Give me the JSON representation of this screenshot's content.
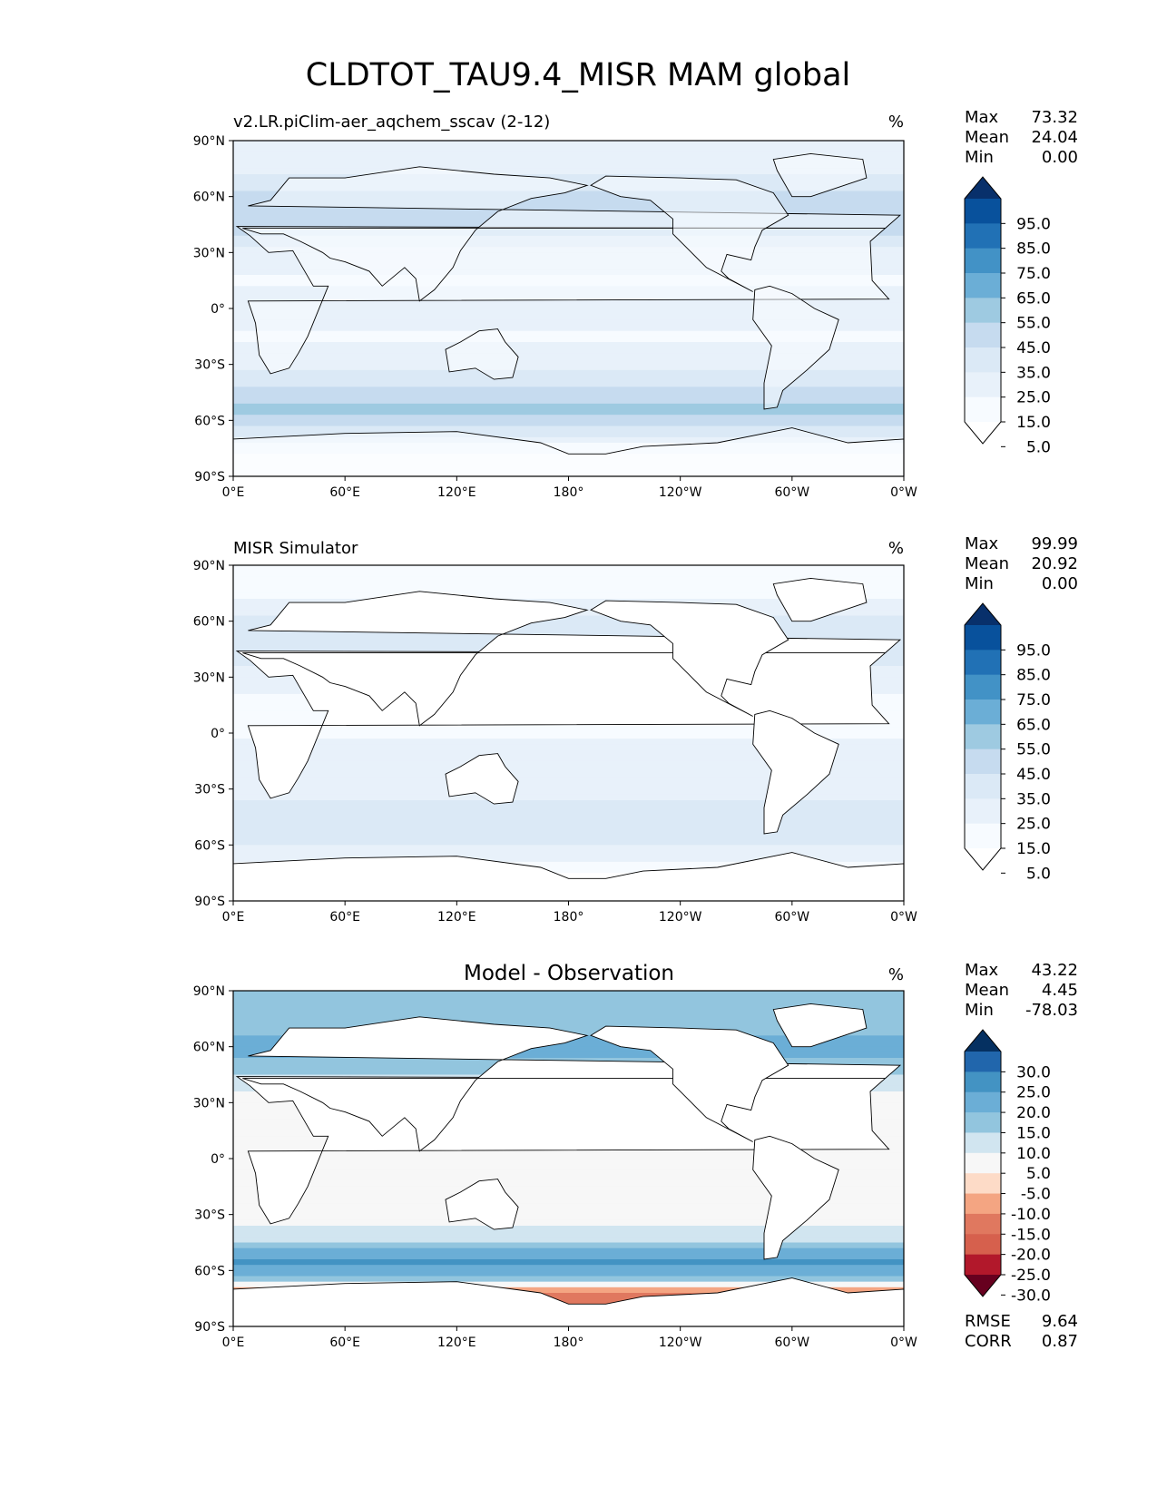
{
  "figure": {
    "title": "CLDTOT_TAU9.4_MISR MAM global"
  },
  "axes": {
    "lat_ticks": [
      "90°N",
      "60°N",
      "30°N",
      "0°",
      "30°S",
      "60°S",
      "90°S"
    ],
    "lon_ticks": [
      "0°E",
      "60°E",
      "120°E",
      "180°",
      "120°W",
      "60°W",
      "0°W"
    ]
  },
  "panels": [
    {
      "title_left": "v2.LR.piClim-aer_aqchem_sscav (2-12)",
      "title_center": "",
      "units": "%",
      "stats": [
        {
          "label": "Max",
          "value": "73.32"
        },
        {
          "label": "Mean",
          "value": "24.04"
        },
        {
          "label": "Min",
          "value": "0.00"
        }
      ],
      "colorbar": {
        "labels": [
          "95.0",
          "85.0",
          "75.0",
          "65.0",
          "55.0",
          "45.0",
          "35.0",
          "25.0",
          "15.0",
          "5.0"
        ],
        "colors_top_to_bottom": [
          "#08306b",
          "#08519c",
          "#2171b5",
          "#4292c6",
          "#6baed6",
          "#9ecae1",
          "#c6dbef",
          "#dbe9f6",
          "#e8f1fa",
          "#f7fbff",
          "#ffffff"
        ]
      },
      "extra_stats": []
    },
    {
      "title_left": "MISR Simulator",
      "title_center": "",
      "units": "%",
      "stats": [
        {
          "label": "Max",
          "value": "99.99"
        },
        {
          "label": "Mean",
          "value": "20.92"
        },
        {
          "label": "Min",
          "value": "0.00"
        }
      ],
      "colorbar": {
        "labels": [
          "95.0",
          "85.0",
          "75.0",
          "65.0",
          "55.0",
          "45.0",
          "35.0",
          "25.0",
          "15.0",
          "5.0"
        ],
        "colors_top_to_bottom": [
          "#08306b",
          "#08519c",
          "#2171b5",
          "#4292c6",
          "#6baed6",
          "#9ecae1",
          "#c6dbef",
          "#dbe9f6",
          "#e8f1fa",
          "#f7fbff",
          "#ffffff"
        ]
      },
      "extra_stats": []
    },
    {
      "title_left": "",
      "title_center": "Model - Observation",
      "units": "%",
      "stats": [
        {
          "label": "Max",
          "value": "43.22"
        },
        {
          "label": "Mean",
          "value": "4.45"
        },
        {
          "label": "Min",
          "value": "-78.03"
        }
      ],
      "colorbar": {
        "labels": [
          "30.0",
          "25.0",
          "20.0",
          "15.0",
          "10.0",
          "5.0",
          "-5.0",
          "-10.0",
          "-15.0",
          "-20.0",
          "-25.0",
          "-30.0"
        ],
        "colors_top_to_bottom": [
          "#053061",
          "#2166ac",
          "#4393c3",
          "#6baed6",
          "#92c5de",
          "#d1e5f0",
          "#f7f7f7",
          "#fddbc7",
          "#f4a582",
          "#e0785f",
          "#d6604d",
          "#b2182b",
          "#67001f"
        ]
      },
      "extra_stats": [
        {
          "label": "RMSE",
          "value": "9.64"
        },
        {
          "label": "CORR",
          "value": "0.87"
        }
      ]
    }
  ],
  "chart_data": [
    {
      "type": "heatmap",
      "title": "v2.LR.piClim-aer_aqchem_sscav (2-12)",
      "units": "%",
      "x_ticks": [
        "0°E",
        "60°E",
        "120°E",
        "180°",
        "120°W",
        "60°W",
        "0°W"
      ],
      "y_ticks": [
        "90°N",
        "60°N",
        "30°N",
        "0°",
        "30°S",
        "60°S",
        "90°S"
      ],
      "xlim": [
        0,
        360
      ],
      "ylim": [
        -90,
        90
      ],
      "color_levels": [
        5,
        15,
        25,
        35,
        45,
        55,
        65,
        75,
        85,
        95
      ],
      "colormap": "Blues",
      "max": 73.32,
      "mean": 24.04,
      "min": 0.0,
      "zonal_band_estimates": [
        {
          "lat": 75,
          "value": 20
        },
        {
          "lat": 60,
          "value": 40
        },
        {
          "lat": 45,
          "value": 42
        },
        {
          "lat": 30,
          "value": 20
        },
        {
          "lat": 15,
          "value": 14
        },
        {
          "lat": 0,
          "value": 18
        },
        {
          "lat": -15,
          "value": 14
        },
        {
          "lat": -30,
          "value": 22
        },
        {
          "lat": -45,
          "value": 40
        },
        {
          "lat": -55,
          "value": 50
        },
        {
          "lat": -65,
          "value": 30
        },
        {
          "lat": -80,
          "value": 3
        }
      ]
    },
    {
      "type": "heatmap",
      "title": "MISR Simulator",
      "units": "%",
      "x_ticks": [
        "0°E",
        "60°E",
        "120°E",
        "180°",
        "120°W",
        "60°W",
        "0°W"
      ],
      "y_ticks": [
        "90°N",
        "60°N",
        "30°N",
        "0°",
        "30°S",
        "60°S",
        "90°S"
      ],
      "xlim": [
        0,
        360
      ],
      "ylim": [
        -90,
        90
      ],
      "color_levels": [
        5,
        15,
        25,
        35,
        45,
        55,
        65,
        75,
        85,
        95
      ],
      "colormap": "Blues",
      "max": 99.99,
      "mean": 20.92,
      "min": 0.0,
      "zonal_band_estimates": [
        {
          "lat": 75,
          "value": 10
        },
        {
          "lat": 60,
          "value": 28
        },
        {
          "lat": 45,
          "value": 35
        },
        {
          "lat": 30,
          "value": 18
        },
        {
          "lat": 15,
          "value": 12
        },
        {
          "lat": 0,
          "value": 14
        },
        {
          "lat": -15,
          "value": 18
        },
        {
          "lat": -30,
          "value": 22
        },
        {
          "lat": -45,
          "value": 30
        },
        {
          "lat": -55,
          "value": 30
        },
        {
          "lat": -65,
          "value": 20
        },
        {
          "lat": -80,
          "value": 0
        }
      ]
    },
    {
      "type": "heatmap",
      "title": "Model - Observation",
      "units": "%",
      "x_ticks": [
        "0°E",
        "60°E",
        "120°E",
        "180°",
        "120°W",
        "60°W",
        "0°W"
      ],
      "y_ticks": [
        "90°N",
        "60°N",
        "30°N",
        "0°",
        "30°S",
        "60°S",
        "90°S"
      ],
      "xlim": [
        0,
        360
      ],
      "ylim": [
        -90,
        90
      ],
      "color_levels": [
        -30,
        -25,
        -20,
        -15,
        -10,
        -5,
        5,
        10,
        15,
        20,
        25,
        30
      ],
      "colormap": "RdBu",
      "max": 43.22,
      "mean": 4.45,
      "min": -78.03,
      "rmse": 9.64,
      "corr": 0.87,
      "zonal_band_estimates": [
        {
          "lat": 75,
          "value": 10
        },
        {
          "lat": 60,
          "value": 18
        },
        {
          "lat": 45,
          "value": 10
        },
        {
          "lat": 30,
          "value": 2
        },
        {
          "lat": 15,
          "value": -2
        },
        {
          "lat": 0,
          "value": 4
        },
        {
          "lat": -15,
          "value": 0
        },
        {
          "lat": -30,
          "value": 0
        },
        {
          "lat": -45,
          "value": 10
        },
        {
          "lat": -55,
          "value": 22
        },
        {
          "lat": -65,
          "value": 12
        },
        {
          "lat": -72,
          "value": -20
        }
      ]
    }
  ]
}
